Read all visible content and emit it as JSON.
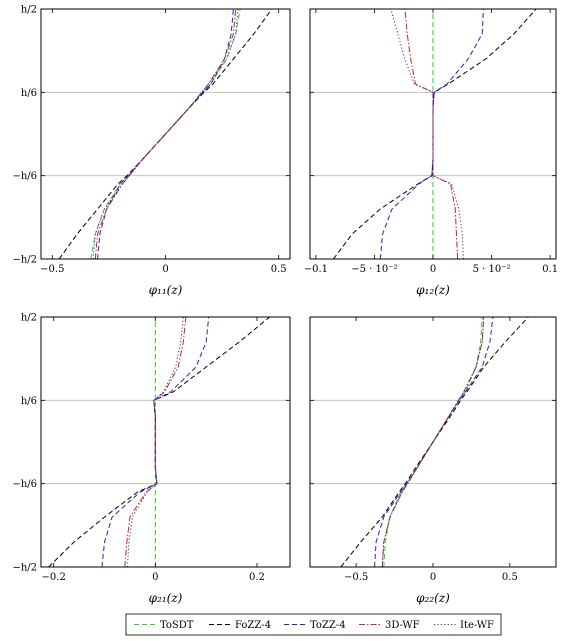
{
  "legend": {
    "entries": [
      {
        "name": "ToSDT",
        "color": "#33cc33",
        "dash": "dashed"
      },
      {
        "name": "FoZZ-4",
        "color": "#000000",
        "dash": "dashed"
      },
      {
        "name": "ToZZ-4",
        "color": "#2222cc",
        "dash": "dashed"
      },
      {
        "name": "3D-WF",
        "color": "#cc2222",
        "dash": "dashdot"
      },
      {
        "name": "Ite-WF",
        "color": "#3333aa",
        "dash": "dotted"
      }
    ]
  },
  "chart_data": [
    {
      "type": "line",
      "xlabel": "φ₁₁(z)",
      "xlim": [
        -0.55,
        0.55
      ],
      "xticks": [
        {
          "v": -0.5,
          "label": "−0.5"
        },
        {
          "v": 0,
          "label": "0"
        },
        {
          "v": 0.5,
          "label": "0.5"
        }
      ],
      "ylim": [
        -0.5,
        0.5
      ],
      "yticks": [
        {
          "v": 0.5,
          "label": "h/2"
        },
        {
          "v": 0.1667,
          "label": "h/6"
        },
        {
          "v": -0.1667,
          "label": "−h/6"
        },
        {
          "v": -0.5,
          "label": "−h/2"
        }
      ],
      "hgrid": [
        0.1667,
        -0.1667
      ],
      "vgrid": [],
      "y": [
        -0.5,
        -0.4,
        -0.3,
        -0.2,
        -0.1667,
        -0.1,
        0,
        0.1,
        0.1667,
        0.2,
        0.3,
        0.4,
        0.5
      ],
      "series": [
        {
          "name": "ToSDT",
          "x": [
            -0.33,
            -0.31,
            -0.27,
            -0.2,
            -0.165,
            -0.1,
            0,
            0.1,
            0.165,
            0.2,
            0.27,
            0.31,
            0.33
          ]
        },
        {
          "name": "FoZZ-4",
          "x": [
            -0.47,
            -0.39,
            -0.3,
            -0.21,
            -0.17,
            -0.1,
            0,
            0.1,
            0.17,
            0.21,
            0.3,
            0.39,
            0.47
          ]
        },
        {
          "name": "ToZZ-4",
          "x": [
            -0.3,
            -0.29,
            -0.26,
            -0.2,
            -0.165,
            -0.1,
            0,
            0.1,
            0.165,
            0.2,
            0.26,
            0.29,
            0.3
          ]
        },
        {
          "name": "3D-WF",
          "x": [
            -0.31,
            -0.3,
            -0.26,
            -0.19,
            -0.16,
            -0.1,
            0,
            0.1,
            0.16,
            0.19,
            0.26,
            0.3,
            0.31
          ]
        },
        {
          "name": "Ite-WF",
          "x": [
            -0.32,
            -0.31,
            -0.27,
            -0.19,
            -0.16,
            -0.1,
            0,
            0.1,
            0.16,
            0.19,
            0.27,
            0.31,
            0.32
          ]
        }
      ]
    },
    {
      "type": "line",
      "xlabel": "φ₁₂(z)",
      "xlim": [
        -0.105,
        0.105
      ],
      "xticks": [
        {
          "v": -0.1,
          "label": "−0.1"
        },
        {
          "v": -0.05,
          "label": "−5 · 10⁻²"
        },
        {
          "v": 0,
          "label": "0"
        },
        {
          "v": 0.05,
          "label": "5 · 10⁻²"
        },
        {
          "v": 0.1,
          "label": "0.1"
        }
      ],
      "ylim": [
        -0.5,
        0.5
      ],
      "yticks": [
        {
          "v": 0.5,
          "label": ""
        },
        {
          "v": 0.1667,
          "label": ""
        },
        {
          "v": -0.1667,
          "label": ""
        },
        {
          "v": -0.5,
          "label": ""
        }
      ],
      "hgrid": [
        0.1667,
        -0.1667
      ],
      "vgrid": [],
      "y": [
        -0.5,
        -0.4,
        -0.3,
        -0.2,
        -0.1667,
        -0.1,
        0,
        0.1,
        0.1667,
        0.2,
        0.3,
        0.4,
        0.5
      ],
      "series": [
        {
          "name": "ToSDT",
          "x": [
            0,
            0,
            0,
            0,
            0,
            0,
            0,
            0,
            0,
            0,
            0,
            0,
            0
          ]
        },
        {
          "name": "FoZZ-4",
          "x": [
            -0.085,
            -0.069,
            -0.045,
            -0.013,
            -0.001,
            0,
            0,
            0,
            0.001,
            0.013,
            0.045,
            0.069,
            0.088
          ]
        },
        {
          "name": "ToZZ-4",
          "x": [
            -0.045,
            -0.043,
            -0.035,
            -0.012,
            -0.001,
            0,
            0,
            0,
            0.001,
            0.012,
            0.03,
            0.042,
            0.043
          ]
        },
        {
          "name": "3D-WF",
          "x": [
            0.021,
            0.02,
            0.019,
            0.015,
            0.0,
            0.0,
            0,
            0.0,
            0.0,
            -0.015,
            -0.019,
            -0.022,
            -0.024
          ]
        },
        {
          "name": "Ite-WF",
          "x": [
            0.026,
            0.025,
            0.022,
            0.016,
            0.0,
            0.0,
            0,
            0.0,
            0.0,
            -0.016,
            -0.024,
            -0.03,
            -0.036
          ]
        }
      ]
    },
    {
      "type": "line",
      "xlabel": "φ₂₁(z)",
      "xlim": [
        -0.225,
        0.265
      ],
      "xticks": [
        {
          "v": -0.2,
          "label": "−0.2"
        },
        {
          "v": 0,
          "label": "0"
        },
        {
          "v": 0.2,
          "label": "0.2"
        }
      ],
      "ylim": [
        -0.5,
        0.5
      ],
      "yticks": [
        {
          "v": 0.5,
          "label": "h/2"
        },
        {
          "v": 0.1667,
          "label": "h/6"
        },
        {
          "v": -0.1667,
          "label": "−h/6"
        },
        {
          "v": -0.5,
          "label": "−h/2"
        }
      ],
      "hgrid": [
        0.1667,
        -0.1667
      ],
      "vgrid": [],
      "y": [
        -0.5,
        -0.4,
        -0.3,
        -0.2,
        -0.1667,
        -0.1,
        0,
        0.1,
        0.1667,
        0.2,
        0.3,
        0.4,
        0.5
      ],
      "series": [
        {
          "name": "ToSDT",
          "x": [
            0,
            0,
            0,
            0,
            0,
            0,
            0,
            0,
            0,
            0,
            0,
            0,
            0
          ]
        },
        {
          "name": "FoZZ-4",
          "x": [
            -0.21,
            -0.16,
            -0.1,
            -0.035,
            0.003,
            0.0,
            0,
            0.0,
            -0.003,
            0.035,
            0.1,
            0.165,
            0.225
          ]
        },
        {
          "name": "ToZZ-4",
          "x": [
            -0.105,
            -0.1,
            -0.085,
            -0.03,
            0.003,
            0.0,
            0,
            0.0,
            -0.003,
            0.03,
            0.08,
            0.1,
            0.105
          ]
        },
        {
          "name": "3D-WF",
          "x": [
            -0.06,
            -0.056,
            -0.05,
            -0.018,
            0.003,
            0.0,
            0,
            0.0,
            -0.003,
            0.018,
            0.045,
            0.055,
            0.06
          ]
        },
        {
          "name": "Ite-WF",
          "x": [
            -0.055,
            -0.052,
            -0.045,
            -0.016,
            0.003,
            0.0,
            0,
            0.0,
            -0.003,
            0.016,
            0.04,
            0.05,
            0.055
          ]
        }
      ]
    },
    {
      "type": "line",
      "xlabel": "φ₂₂(z)",
      "xlim": [
        -0.8,
        0.8
      ],
      "xticks": [
        {
          "v": -0.5,
          "label": "−0.5"
        },
        {
          "v": 0,
          "label": "0"
        },
        {
          "v": 0.5,
          "label": "0.5"
        }
      ],
      "ylim": [
        -0.5,
        0.5
      ],
      "yticks": [
        {
          "v": 0.5,
          "label": ""
        },
        {
          "v": 0.1667,
          "label": ""
        },
        {
          "v": -0.1667,
          "label": ""
        },
        {
          "v": -0.5,
          "label": ""
        }
      ],
      "hgrid": [
        0.1667,
        -0.1667
      ],
      "vgrid": [],
      "y": [
        -0.5,
        -0.4,
        -0.3,
        -0.2,
        -0.1667,
        -0.1,
        0,
        0.1,
        0.1667,
        0.2,
        0.3,
        0.4,
        0.5
      ],
      "series": [
        {
          "name": "ToSDT",
          "x": [
            -0.32,
            -0.31,
            -0.28,
            -0.21,
            -0.17,
            -0.1,
            0,
            0.1,
            0.17,
            0.21,
            0.28,
            0.31,
            0.32
          ]
        },
        {
          "name": "FoZZ-4",
          "x": [
            -0.6,
            -0.47,
            -0.33,
            -0.22,
            -0.18,
            -0.11,
            0,
            0.11,
            0.18,
            0.22,
            0.33,
            0.47,
            0.62
          ]
        },
        {
          "name": "ToZZ-4",
          "x": [
            -0.38,
            -0.37,
            -0.32,
            -0.21,
            -0.17,
            -0.1,
            0,
            0.1,
            0.17,
            0.21,
            0.32,
            0.37,
            0.39
          ]
        },
        {
          "name": "3D-WF",
          "x": [
            -0.33,
            -0.32,
            -0.28,
            -0.2,
            -0.165,
            -0.1,
            0,
            0.1,
            0.165,
            0.2,
            0.28,
            0.32,
            0.33
          ]
        },
        {
          "name": "Ite-WF",
          "x": [
            -0.33,
            -0.32,
            -0.28,
            -0.2,
            -0.165,
            -0.1,
            0,
            0.1,
            0.165,
            0.2,
            0.28,
            0.32,
            0.33
          ]
        }
      ]
    }
  ]
}
